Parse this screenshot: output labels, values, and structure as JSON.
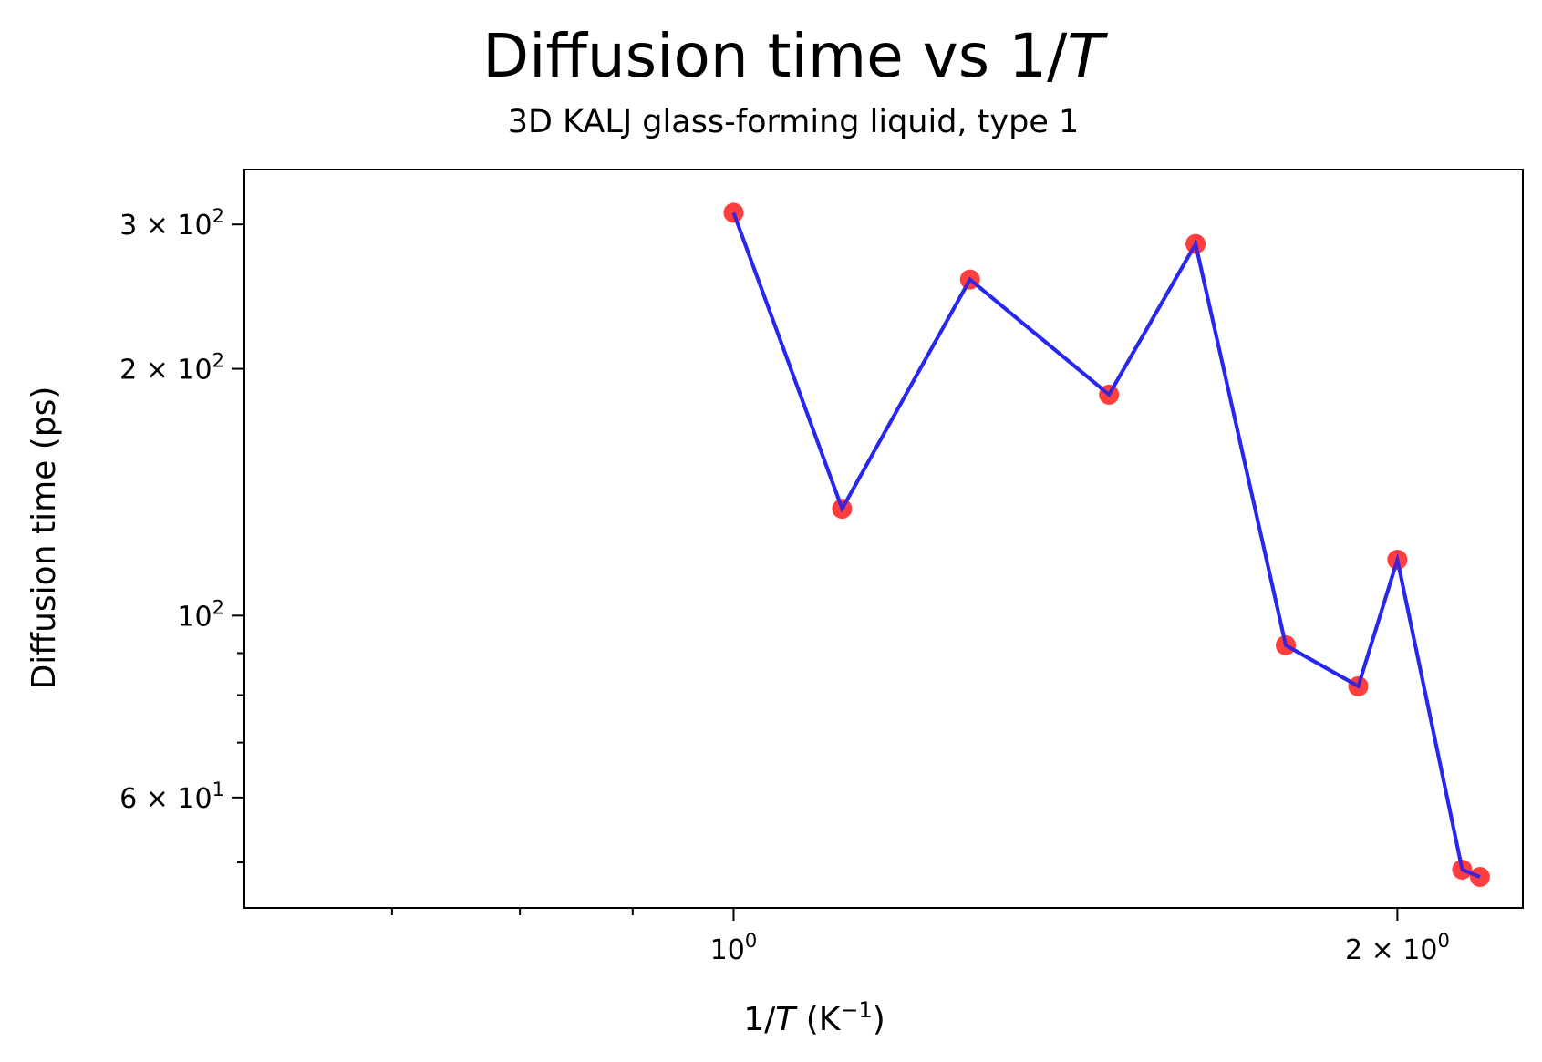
{
  "chart_data": {
    "type": "line",
    "title_main": "Diffusion time vs 1/",
    "title_var": "T",
    "subtitle": "3D KALJ glass-forming liquid, type 1",
    "xlabel_pre": "1/",
    "xlabel_var": "T",
    "xlabel_post": " (K",
    "xlabel_exp": "−1",
    "xlabel_close": ")",
    "ylabel": "Diffusion time (ps)",
    "xscale": "log",
    "yscale": "log",
    "xlim": [
      0.6,
      2.28
    ],
    "ylim": [
      44,
      350
    ],
    "grid": false,
    "x_ticks": [
      {
        "value": 1.0,
        "mant": "",
        "exp": "0"
      },
      {
        "value": 2.0,
        "mant": "2 × ",
        "exp": "0"
      }
    ],
    "y_ticks": [
      {
        "value": 60,
        "mant": "6 × 10",
        "exp": "1"
      },
      {
        "value": 100,
        "mant": "10",
        "exp": "2"
      },
      {
        "value": 200,
        "mant": "2 × 10",
        "exp": "2"
      },
      {
        "value": 300,
        "mant": "3 × 10",
        "exp": "2"
      }
    ],
    "x_minor_ticks": [
      0.7,
      0.8,
      0.9
    ],
    "y_minor_ticks": [
      50,
      70,
      80,
      90
    ],
    "series": [
      {
        "x": [
          1.0,
          1.12,
          1.28,
          1.48,
          1.62,
          1.78,
          1.92,
          2.0,
          2.14,
          2.18
        ],
        "y": [
          310,
          135,
          257,
          186,
          284,
          92,
          82,
          117,
          49,
          48
        ],
        "line_color": "#2222ee",
        "marker_color": "#ff2a2a"
      }
    ]
  }
}
